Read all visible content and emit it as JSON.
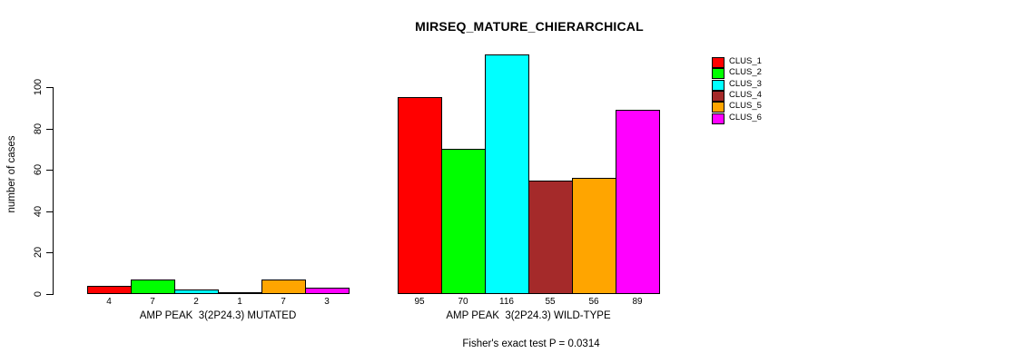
{
  "title": "MIRSEQ_MATURE_CHIERARCHICAL",
  "chart_data": {
    "type": "bar",
    "title": "MIRSEQ_MATURE_CHIERARCHICAL",
    "ylabel": "number of cases",
    "xlabel": "",
    "ylim": [
      0,
      116
    ],
    "yticks": [
      0,
      20,
      40,
      60,
      80,
      100
    ],
    "grid": false,
    "legend_position": "right",
    "background": "#ffffff",
    "bar_border_color": "#000000",
    "series": [
      {
        "name": "CLUS_1",
        "color": "#FF0000"
      },
      {
        "name": "CLUS_2",
        "color": "#00FF00"
      },
      {
        "name": "CLUS_3",
        "color": "#00FFFF"
      },
      {
        "name": "CLUS_4",
        "color": "#A52A2A"
      },
      {
        "name": "CLUS_5",
        "color": "#FFA500"
      },
      {
        "name": "CLUS_6",
        "color": "#FF00FF"
      }
    ],
    "groups": [
      {
        "label": "AMP PEAK  3(2P24.3) MUTATED",
        "values": [
          4,
          7,
          2,
          1,
          7,
          3
        ]
      },
      {
        "label": "AMP PEAK  3(2P24.3) WILD-TYPE",
        "values": [
          95,
          70,
          116,
          55,
          56,
          89
        ]
      }
    ],
    "value_labels_shown": true,
    "annotation": "Fisher's exact test P = 0.0314"
  }
}
